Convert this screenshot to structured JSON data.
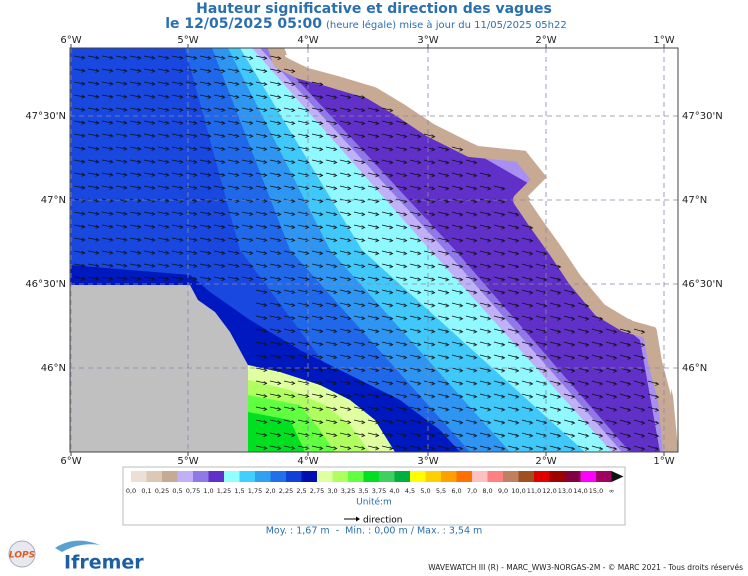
{
  "header": {
    "title": "Hauteur significative et direction des vagues",
    "date": "le 12/05/2025 05:00",
    "date_note": "(heure légale) mise à jour du 11/05/2025 05h22"
  },
  "map": {
    "longitudes": [
      "6°W",
      "5°W",
      "4°W",
      "3°W",
      "2°W",
      "1°W"
    ],
    "latitudes": [
      "47°30'N",
      "47°N",
      "46°30'N",
      "46°N"
    ]
  },
  "legend": {
    "labels": [
      "0,0",
      "0,1",
      "0,25",
      "0,5",
      "0,75",
      "1,0",
      "1,25",
      "1,5",
      "1,75",
      "2,0",
      "2,25",
      "2,5",
      "2,75",
      "3,0",
      "3,25",
      "3,5",
      "3,75",
      "4,0",
      "4,5",
      "5,0",
      "5,5",
      "6,0",
      "7,0",
      "8,0",
      "9,0",
      "10,0",
      "11,0",
      "12,0",
      "13,0",
      "14,0",
      "15,0",
      "∞"
    ],
    "colors": [
      "#ece0d4",
      "#dcc8b4",
      "#c8aa94",
      "#c0b0f8",
      "#9078e8",
      "#6030c8",
      "#90ffff",
      "#40d0ff",
      "#30a0f0",
      "#2070e8",
      "#1040d8",
      "#0010b0",
      "#e0ffa0",
      "#b0ff60",
      "#60ff40",
      "#00e020",
      "#40d060",
      "#00b040",
      "#ffff00",
      "#ffd000",
      "#ffa000",
      "#ff7000",
      "#ffc0c0",
      "#ff8080",
      "#c08060",
      "#a05020",
      "#e00000",
      "#a00000",
      "#800040",
      "#ff00ff",
      "#a00060"
    ],
    "unit": "Unité:m",
    "direction": "direction"
  },
  "stats": "Moy. : 1,67 m  -  Min. : 0,00 m / Max. : 3,54 m",
  "logos": {
    "lops": "LOPS",
    "ifremer": "Ifremer"
  },
  "footer": "WAVEWATCH III (R) - MARC_WW3-NORGAS-2M - © MARC 2021 - Tous droits réservés"
}
